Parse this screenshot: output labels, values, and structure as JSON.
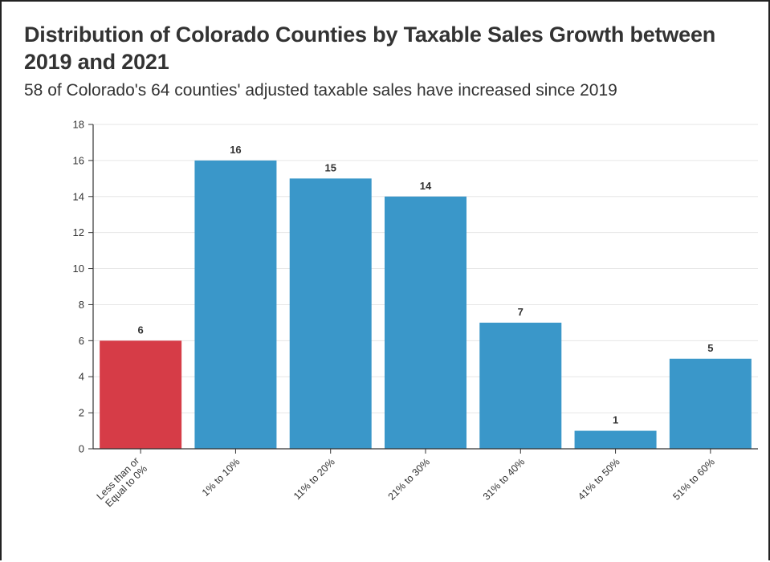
{
  "chart_data": {
    "type": "bar",
    "title": "Distribution of Colorado Counties by Taxable Sales Growth between 2019 and 2021",
    "subtitle": "58 of Colorado's 64 counties' adjusted taxable sales have increased since 2019",
    "xlabel": "",
    "ylabel": "",
    "categories": [
      "Less than or Equal to 0%",
      "1% to 10%",
      "11% to 20%",
      "21% to 30%",
      "31% to 40%",
      "41% to 50%",
      "51% to 60%"
    ],
    "values": [
      6,
      16,
      15,
      14,
      7,
      1,
      5
    ],
    "bar_colors": [
      "#d63c47",
      "#3a97c9",
      "#3a97c9",
      "#3a97c9",
      "#3a97c9",
      "#3a97c9",
      "#3a97c9"
    ],
    "ylim": [
      0,
      18
    ],
    "yticks": [
      0,
      2,
      4,
      6,
      8,
      10,
      12,
      14,
      16,
      18
    ],
    "grid": true,
    "legend": "none"
  }
}
